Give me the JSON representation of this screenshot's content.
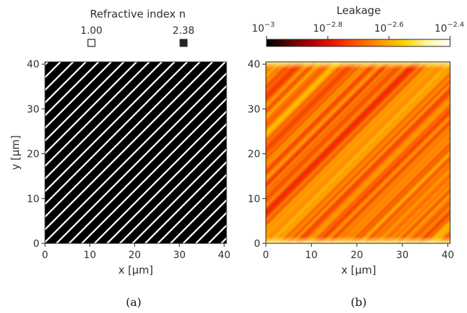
{
  "panels": [
    {
      "caption": "(a)",
      "legend": {
        "title": "Refractive index n",
        "entries": [
          {
            "label": "1.00",
            "color": "#ffffff",
            "outline": "#222222"
          },
          {
            "label": "2.38",
            "color": "#262626",
            "outline": "#262626"
          }
        ]
      }
    },
    {
      "caption": "(b)",
      "colorbar": {
        "title": "Leakage",
        "scale": "log",
        "tick_bases": [
          "10",
          "10",
          "10",
          "10"
        ],
        "tick_exponents": [
          "−3",
          "−2.8",
          "−2.6",
          "−2.4"
        ],
        "tick_values": [
          -3.0,
          -2.8,
          -2.6,
          -2.4
        ],
        "range": [
          -3.0,
          -2.4
        ],
        "colormap": [
          "#000000",
          "#5a0000",
          "#b40000",
          "#f01d00",
          "#ff5a00",
          "#ff9a00",
          "#ffd200",
          "#fff6a0",
          "#ffffff"
        ]
      }
    }
  ],
  "chart_data": [
    {
      "type": "heatmap",
      "description_source": "panel a",
      "xlabel": "x [µm]",
      "ylabel": "y [µm]",
      "xlim": [
        0,
        40.5
      ],
      "ylim": [
        0,
        40.5
      ],
      "xticks": [
        "0",
        "10",
        "20",
        "30",
        "40"
      ],
      "yticks": [
        "0",
        "10",
        "20",
        "30",
        "40"
      ],
      "grating_period_um": 2.0,
      "line_values": [
        1.0,
        2.38
      ],
      "background_value": 2.38,
      "stripe_value": 1.0
    },
    {
      "type": "heatmap",
      "description_source": "panel b",
      "xlabel": "x [µm]",
      "xlim": [
        0,
        40.5
      ],
      "ylim": [
        0,
        40.5
      ],
      "xticks": [
        "0",
        "10",
        "20",
        "30",
        "40"
      ],
      "yticks": [
        "0",
        "10",
        "20",
        "30",
        "40"
      ],
      "value_range_log10": [
        -2.72,
        -2.45
      ],
      "typical_value_log10": -2.66
    }
  ]
}
